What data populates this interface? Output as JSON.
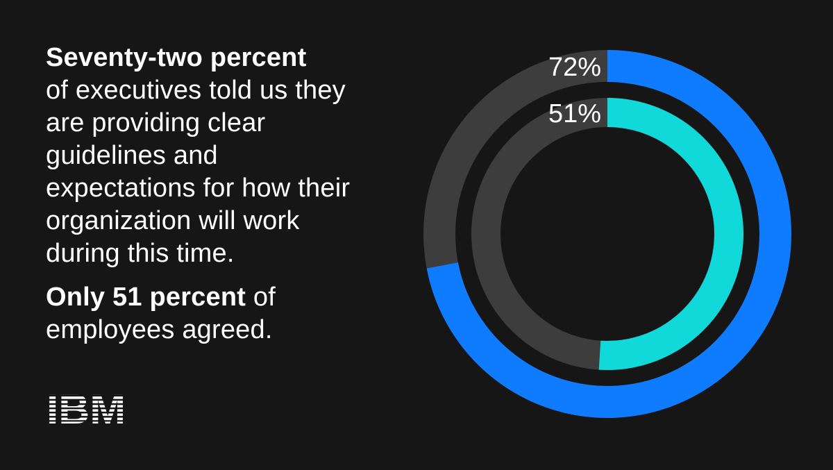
{
  "headline": {
    "bold_lead": "Seventy-two percent",
    "rest": "of executives told us they are providing clear guidelines and expectations for how their organization will work during this time."
  },
  "followup": {
    "bold_lead": "Only 51 percent",
    "rest": "of employees agreed."
  },
  "logo": {
    "text": "IBM",
    "color": "#ffffff"
  },
  "colors": {
    "background": "#161616",
    "track": "#3d3d3d",
    "executives": "#0f7bff",
    "employees": "#12d9d9"
  },
  "chart_data": {
    "type": "pie",
    "variant": "concentric-donut",
    "series": [
      {
        "value": 72,
        "label": "72%",
        "color": "#0f7bff"
      },
      {
        "value": 51,
        "label": "51%",
        "color": "#12d9d9"
      }
    ],
    "max": 100
  }
}
